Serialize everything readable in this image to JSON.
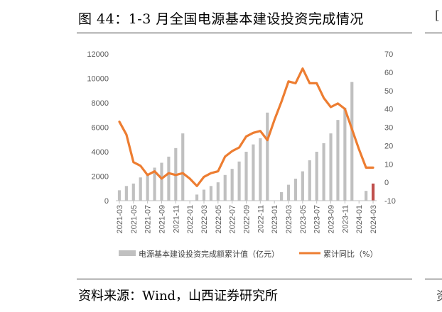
{
  "header": {
    "title": "图 44：1-3 月全国电源基本建设投资完成情况"
  },
  "footer": {
    "source": "资料来源：Wind，山西证券研究所"
  },
  "right_edge": {
    "top_glyph": "[",
    "bottom_glyph": "资"
  },
  "colors": {
    "bar": "#c0c0c0",
    "bar_highlight": "#c0504d",
    "line": "#ed7d31"
  },
  "chart_data": {
    "type": "bar",
    "categories": [
      "2021-03",
      "2021-04",
      "2021-05",
      "2021-06",
      "2021-07",
      "2021-08",
      "2021-09",
      "2021-10",
      "2021-11",
      "2021-12",
      "2022-01",
      "2022-02",
      "2022-03",
      "2022-04",
      "2022-05",
      "2022-06",
      "2022-07",
      "2022-08",
      "2022-09",
      "2022-10",
      "2022-11",
      "2022-12",
      "2023-01",
      "2023-02",
      "2023-03",
      "2023-04",
      "2023-05",
      "2023-06",
      "2023-07",
      "2023-08",
      "2023-09",
      "2023-10",
      "2023-11",
      "2023-12",
      "2024-01",
      "2024-02",
      "2024-03"
    ],
    "x_tick_labels": [
      "2021-03",
      "2021-05",
      "2021-07",
      "2021-09",
      "2021-11",
      "2022-01",
      "2022-03",
      "2022-05",
      "2022-07",
      "2022-09",
      "2022-11",
      "2023-01",
      "2023-03",
      "2023-05",
      "2023-07",
      "2023-09",
      "2023-11",
      "2024-01",
      "2024-03"
    ],
    "series": [
      {
        "name": "电源基本建设投资完成额累计值（亿元）",
        "axis": "left",
        "kind": "bar",
        "values": [
          850,
          1200,
          1400,
          1900,
          2200,
          2700,
          3100,
          3600,
          4300,
          5500,
          null,
          500,
          900,
          1200,
          1500,
          2100,
          2600,
          3200,
          4000,
          4600,
          5100,
          7200,
          null,
          700,
          1300,
          1800,
          2400,
          3300,
          4000,
          4700,
          5500,
          6600,
          7600,
          9700,
          null,
          800,
          1400
        ],
        "highlight_index": 36
      },
      {
        "name": "累计同比（%）",
        "axis": "right",
        "kind": "line",
        "values": [
          33,
          26,
          11,
          9,
          4,
          6,
          2,
          5,
          4,
          5,
          2,
          -2,
          3,
          5,
          6,
          14,
          17,
          19,
          25,
          27,
          28,
          23,
          34,
          44,
          55,
          54,
          62,
          54,
          54,
          46,
          41,
          43,
          40,
          29,
          18,
          8,
          8
        ]
      }
    ],
    "y_left": {
      "min": 0,
      "max": 12000,
      "ticks": [
        0,
        2000,
        4000,
        6000,
        8000,
        10000,
        12000
      ]
    },
    "y_right": {
      "min": -10,
      "max": 70,
      "ticks": [
        -10,
        0,
        10,
        20,
        30,
        40,
        50,
        60,
        70
      ]
    },
    "legend_position": "bottom",
    "grid": false
  }
}
